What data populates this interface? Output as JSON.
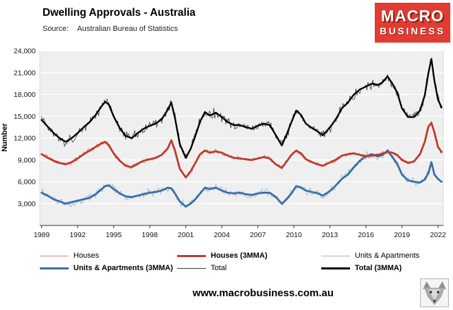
{
  "header": {
    "title": "Dwelling Approvals - Australia",
    "source_label": "Source:",
    "source_value": "Australian Bureau of Statistics",
    "logo": {
      "line1": "MACRO",
      "line2": "BUSINESS",
      "bg_color": "#e23b31"
    }
  },
  "chart_data": {
    "type": "line",
    "title": "Dwelling Approvals - Australia",
    "xlabel": "",
    "ylabel": "Number",
    "xlim": [
      1988.85,
      2022.45
    ],
    "ylim": [
      0,
      24000
    ],
    "y_ticks": [
      3000,
      6000,
      9000,
      12000,
      15000,
      18000,
      21000,
      24000
    ],
    "x_ticks": [
      1989,
      1992,
      1995,
      1998,
      2001,
      2004,
      2007,
      2010,
      2013,
      2016,
      2019,
      2022
    ],
    "grid": true,
    "plot_bg": "#efeff0",
    "grid_color": "#ffffff",
    "legend_position": "bottom",
    "x": [
      1989.0,
      1989.5,
      1990.0,
      1990.5,
      1991.0,
      1991.5,
      1992.0,
      1992.5,
      1993.0,
      1993.5,
      1994.0,
      1994.3,
      1994.6,
      1995.0,
      1995.5,
      1996.0,
      1996.5,
      1997.0,
      1997.5,
      1998.0,
      1998.5,
      1999.0,
      1999.5,
      1999.8,
      2000.1,
      2000.5,
      2001.0,
      2001.4,
      2001.8,
      2002.2,
      2002.6,
      2003.0,
      2003.5,
      2004.0,
      2004.5,
      2005.0,
      2005.5,
      2006.0,
      2006.5,
      2007.0,
      2007.5,
      2008.0,
      2008.5,
      2009.0,
      2009.4,
      2009.8,
      2010.2,
      2010.6,
      2011.0,
      2011.5,
      2012.0,
      2012.4,
      2012.8,
      2013.2,
      2013.6,
      2014.0,
      2014.5,
      2015.0,
      2015.5,
      2016.0,
      2016.5,
      2017.0,
      2017.4,
      2017.8,
      2018.2,
      2018.6,
      2019.0,
      2019.5,
      2020.0,
      2020.5,
      2020.9,
      2021.2,
      2021.45,
      2021.7,
      2022.0,
      2022.3
    ],
    "values": {
      "houses": [
        9800,
        9300,
        8900,
        8600,
        8400,
        8700,
        9200,
        9800,
        10300,
        10800,
        11300,
        11500,
        11000,
        9900,
        8900,
        8200,
        8000,
        8500,
        8900,
        9100,
        9300,
        9700,
        10600,
        11700,
        10300,
        7800,
        6600,
        7400,
        8600,
        9800,
        10300,
        10000,
        10200,
        10000,
        9600,
        9300,
        9200,
        9100,
        9000,
        9200,
        9400,
        9200,
        8400,
        7900,
        8800,
        9700,
        10300,
        9900,
        9100,
        8700,
        8400,
        8200,
        8500,
        8800,
        9100,
        9600,
        9800,
        9900,
        9700,
        9500,
        9600,
        9700,
        9900,
        10100,
        10000,
        9700,
        9000,
        8600,
        8800,
        9800,
        11500,
        13600,
        14100,
        12800,
        10800,
        10100
      ],
      "units": [
        4500,
        4100,
        3600,
        3300,
        3000,
        3200,
        3400,
        3600,
        3800,
        4300,
        5000,
        5400,
        5500,
        5000,
        4400,
        4000,
        3900,
        4100,
        4300,
        4500,
        4600,
        4800,
        5200,
        5100,
        4400,
        3300,
        2600,
        3000,
        3600,
        4400,
        5200,
        5000,
        5200,
        4800,
        4500,
        4400,
        4500,
        4300,
        4200,
        4400,
        4500,
        4500,
        3900,
        3000,
        3600,
        4400,
        5400,
        5200,
        4800,
        4600,
        4400,
        4100,
        4500,
        5000,
        5700,
        6400,
        7000,
        8000,
        8900,
        9500,
        9800,
        9500,
        9700,
        10300,
        9400,
        8500,
        7000,
        6200,
        6000,
        5900,
        6300,
        7200,
        8700,
        7000,
        6400,
        6000
      ],
      "total": [
        14500,
        13600,
        12700,
        12000,
        11500,
        12000,
        12700,
        13500,
        14200,
        15200,
        16400,
        17000,
        16600,
        15000,
        13400,
        12300,
        12000,
        12700,
        13300,
        13700,
        14000,
        14600,
        15900,
        16900,
        14800,
        11200,
        9300,
        10500,
        12300,
        14300,
        15600,
        15100,
        15500,
        14900,
        14200,
        13800,
        13800,
        13500,
        13300,
        13700,
        14000,
        13800,
        12400,
        11000,
        12500,
        14200,
        15800,
        15200,
        14000,
        13400,
        12900,
        12400,
        13100,
        13900,
        14900,
        16100,
        16900,
        18000,
        18700,
        19100,
        19500,
        19300,
        19700,
        20500,
        19500,
        18300,
        16100,
        14900,
        14900,
        15800,
        17900,
        20900,
        22900,
        19900,
        17300,
        16200
      ]
    },
    "series": [
      {
        "name": "Houses",
        "key": "houses",
        "color": "#cf8a80",
        "width": 0.8,
        "monthly": true,
        "noise": 420
      },
      {
        "name": "Units & Apartments",
        "key": "units",
        "color": "#9bb8d4",
        "width": 0.8,
        "monthly": true,
        "noise": 700
      },
      {
        "name": "Total",
        "key": "total",
        "color": "#3a3a3a",
        "width": 0.8,
        "monthly": true,
        "noise": 850
      },
      {
        "name": "Units & Apartments (3MMA)",
        "key": "units",
        "color": "#3b6ea5",
        "width": 2.8,
        "monthly": false,
        "noise": 0
      },
      {
        "name": "Houses (3MMA)",
        "key": "houses",
        "color": "#c0392b",
        "width": 2.8,
        "monthly": false,
        "noise": 0
      },
      {
        "name": "Total (3MMA)",
        "key": "total",
        "color": "#000000",
        "width": 2.4,
        "monthly": false,
        "noise": 0
      }
    ]
  },
  "legend": {
    "items": [
      {
        "label": "Houses",
        "color": "#cf8a80",
        "thick": false
      },
      {
        "label": "Houses (3MMA)",
        "color": "#c0392b",
        "thick": true
      },
      {
        "label": "Units & Apartments",
        "color": "#9bb8d4",
        "thick": false
      },
      {
        "label": "Units & Apartments (3MMA)",
        "color": "#3b6ea5",
        "thick": true
      },
      {
        "label": "Total",
        "color": "#3a3a3a",
        "thick": false
      },
      {
        "label": "Total (3MMA)",
        "color": "#000000",
        "thick": true
      }
    ]
  },
  "footer": {
    "website": "www.macrobusiness.com.au"
  }
}
